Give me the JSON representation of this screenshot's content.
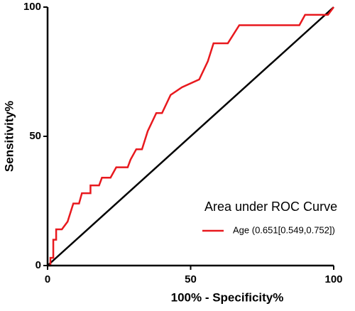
{
  "chart_data": {
    "type": "line",
    "x_label": "100% - Specificity%",
    "y_label": "Sensitivity%",
    "legend_title": "Area under ROC Curve",
    "series": [
      {
        "name": "Age (0.651[0.549,0.752])",
        "color": "#e8191e",
        "x": [
          0,
          1,
          1,
          2,
          2,
          3,
          3,
          5,
          7,
          9,
          11,
          12,
          15,
          15,
          18,
          19,
          22,
          24,
          28,
          29,
          31,
          33,
          35,
          38,
          40,
          43,
          47,
          53,
          56,
          58,
          63,
          67,
          88,
          90,
          98,
          100
        ],
        "values": [
          0,
          0,
          3,
          3,
          10,
          10,
          14,
          14,
          17,
          24,
          24,
          28,
          28,
          31,
          31,
          34,
          34,
          38,
          38,
          41,
          45,
          45,
          52,
          59,
          59,
          66,
          69,
          72,
          79,
          86,
          86,
          93,
          93,
          97,
          97,
          100
        ]
      }
    ],
    "xlim": [
      0,
      100
    ],
    "xticks": [
      0,
      50,
      100
    ],
    "ylim": [
      0,
      100
    ],
    "yticks": [
      0,
      50,
      100
    ]
  }
}
